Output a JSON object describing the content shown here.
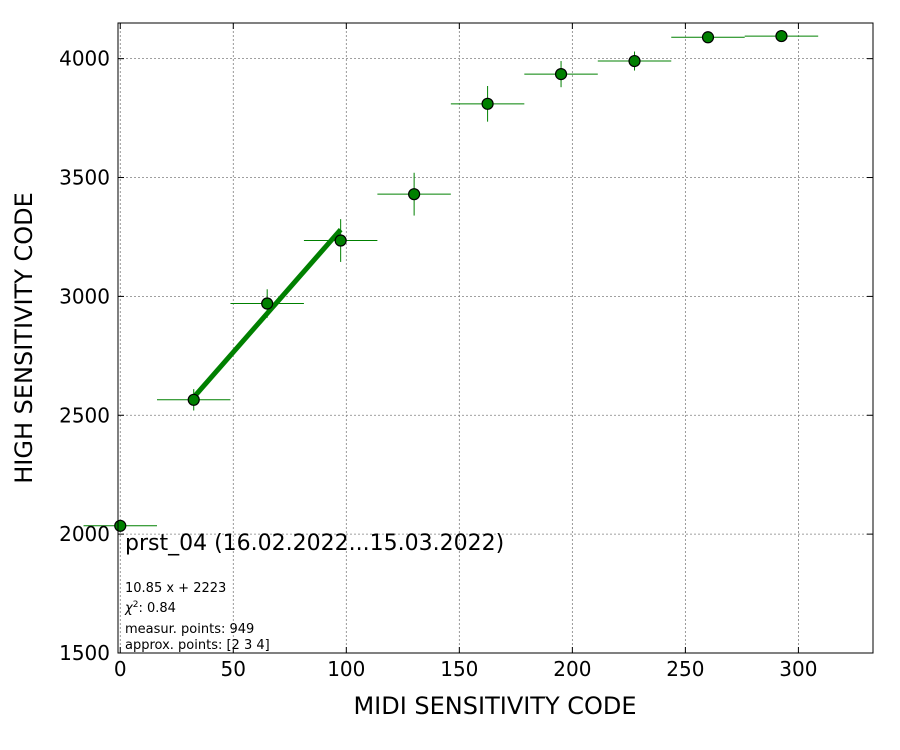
{
  "chart_data": {
    "type": "scatter",
    "title": "",
    "xlabel": "MIDI SENSITIVITY CODE",
    "ylabel": "HIGH SENSITIVITY CODE",
    "xlim": [
      -1,
      333
    ],
    "ylim": [
      1500,
      4150
    ],
    "x_ticks": [
      0,
      50,
      100,
      150,
      200,
      250,
      300
    ],
    "y_ticks": [
      1500,
      2000,
      2500,
      3000,
      3500,
      4000
    ],
    "grid": true,
    "colors": {
      "points": "#008000",
      "edge": "#000000",
      "fit": "#008000",
      "grid": "#808080"
    },
    "series": [
      {
        "points": [
          {
            "x": 0,
            "y": 2035,
            "xerr": 16.25,
            "yerr": 0
          },
          {
            "x": 32.5,
            "y": 2565,
            "xerr": 16.25,
            "yerr": 45
          },
          {
            "x": 65,
            "y": 2970,
            "xerr": 16.25,
            "yerr": 60
          },
          {
            "x": 97.5,
            "y": 3235,
            "xerr": 16.25,
            "yerr": 90
          },
          {
            "x": 130,
            "y": 3430,
            "xerr": 16.25,
            "yerr": 90
          },
          {
            "x": 162.5,
            "y": 3810,
            "xerr": 16.25,
            "yerr": 75
          },
          {
            "x": 195,
            "y": 3935,
            "xerr": 16.25,
            "yerr": 55
          },
          {
            "x": 227.5,
            "y": 3990,
            "xerr": 16.25,
            "yerr": 40
          },
          {
            "x": 260,
            "y": 4090,
            "xerr": 16.25,
            "yerr": 0
          },
          {
            "x": 292.5,
            "y": 4095,
            "xerr": 16.25,
            "yerr": 0
          }
        ]
      }
    ],
    "fit_line": {
      "slope": 10.85,
      "intercept": 2223,
      "x_range": [
        32.5,
        97.5
      ]
    },
    "annotations": {
      "main": "prst_04 (16.02.2022...15.03.2022)",
      "equation": "10.85 x + 2223",
      "chi_label": "χ",
      "chi_power": "2",
      "chi_value": ": 0.84",
      "measur": "measur. points: 949",
      "approx": "approx. points: [2 3 4]"
    }
  }
}
